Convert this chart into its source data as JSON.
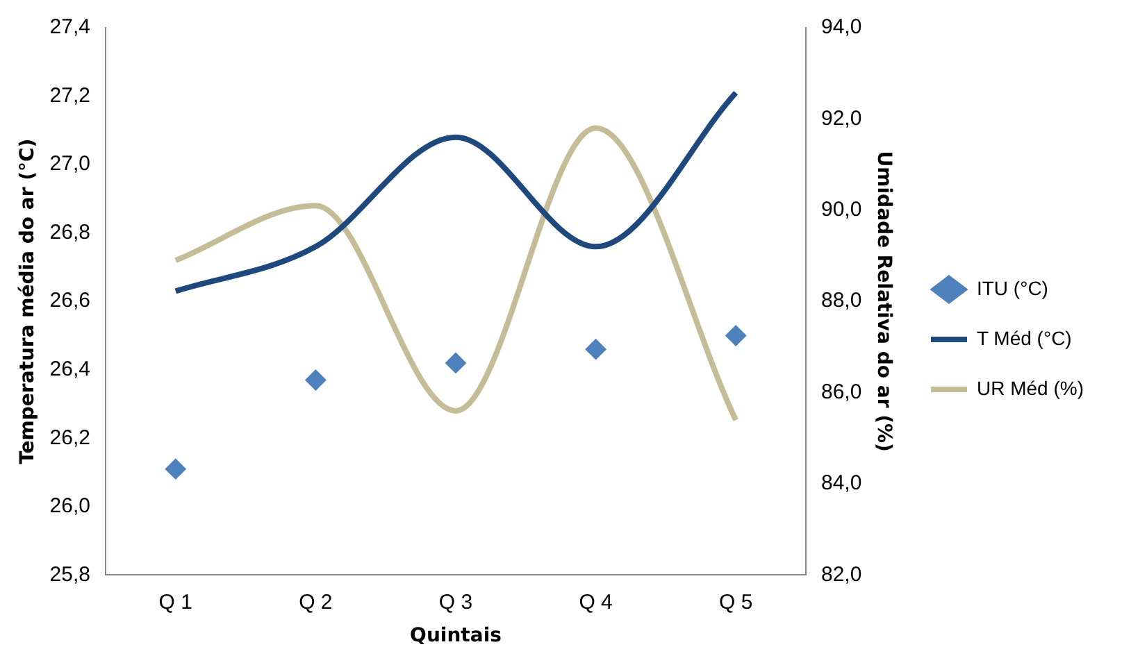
{
  "chart_data": {
    "type": "line",
    "xlabel": "Quintais",
    "ylabel": "Temperatura média do ar (°C)",
    "y2label": "Umidade Relativa do ar (%)",
    "categories": [
      "Q 1",
      "Q 2",
      "Q 3",
      "Q 4",
      "Q 5"
    ],
    "series": [
      {
        "name": "ITU (°C)",
        "type": "scatter",
        "marker": "diamond",
        "color": "#4f81bd",
        "values": [
          26.11,
          26.37,
          26.42,
          26.46,
          26.5
        ]
      },
      {
        "name": "T Méd (°C)",
        "marker": "none",
        "color": "#1f497d",
        "values": [
          26.63,
          26.76,
          27.08,
          26.76,
          27.21
        ]
      },
      {
        "name": "UR Méd (%)",
        "marker": "none",
        "axis": "y2",
        "color": "#c4bd97",
        "values": [
          88.9,
          90.1,
          85.6,
          91.8,
          85.4
        ]
      }
    ],
    "ylim": [
      25.8,
      27.4
    ],
    "yticks": [
      {
        "value": 25.8,
        "label": "25,8"
      },
      {
        "value": 26,
        "label": "26,0"
      },
      {
        "value": 26.2,
        "label": "26,2"
      },
      {
        "value": 26.4,
        "label": "26,4"
      },
      {
        "value": 26.6,
        "label": "26,6"
      },
      {
        "value": 26.8,
        "label": "26,8"
      },
      {
        "value": 27,
        "label": "27,0"
      },
      {
        "value": 27.2,
        "label": "27,2"
      },
      {
        "value": 27.4,
        "label": "27,4"
      }
    ],
    "y2lim": [
      82,
      94
    ],
    "y2ticks": [
      {
        "value": 82,
        "label": "82,0"
      },
      {
        "value": 84,
        "label": "84,0"
      },
      {
        "value": 86,
        "label": "86,0"
      },
      {
        "value": 88,
        "label": "88,0"
      },
      {
        "value": 90,
        "label": "90,0"
      },
      {
        "value": 92,
        "label": "92,0"
      },
      {
        "value": 94,
        "label": "94,0"
      }
    ],
    "grid": false,
    "legend": "right"
  }
}
